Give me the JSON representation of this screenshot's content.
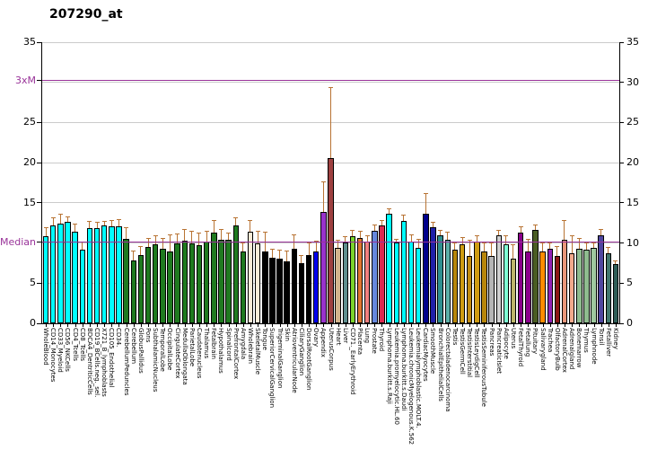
{
  "chart_data": {
    "type": "bar",
    "title": "207290_at",
    "xlabel": "",
    "ylabel": "",
    "ylim": [
      0,
      35
    ],
    "grid": true,
    "gridlines": [
      5,
      10,
      15,
      20,
      25,
      30,
      35
    ],
    "grid_color": "#cbcbcb",
    "axis_color": "#000000",
    "error_color": "#b87333",
    "ref_lines": [
      {
        "name": "3xM-line",
        "value": 30.2,
        "color": "#993399"
      },
      {
        "name": "median-line",
        "value": 10.07,
        "color": "#993399"
      }
    ],
    "left_ticks": [
      {
        "value": 35,
        "label": "35",
        "color": "#000000"
      },
      {
        "value": 30.2,
        "label": "3xM",
        "color": "#993399"
      },
      {
        "value": 25,
        "label": "25",
        "color": "#000000"
      },
      {
        "value": 20,
        "label": "20",
        "color": "#000000"
      },
      {
        "value": 15,
        "label": "15",
        "color": "#000000"
      },
      {
        "value": 10.07,
        "label": "Median",
        "color": "#993399"
      },
      {
        "value": 5,
        "label": "5",
        "color": "#000000"
      },
      {
        "value": 0,
        "label": "0",
        "color": "#000000"
      }
    ],
    "right_ticks": [
      {
        "value": 35,
        "label": "35"
      },
      {
        "value": 30,
        "label": "30"
      },
      {
        "value": 25,
        "label": "25"
      },
      {
        "value": 20,
        "label": "20"
      },
      {
        "value": 15,
        "label": "15"
      },
      {
        "value": 10,
        "label": "10"
      },
      {
        "value": 5,
        "label": "5"
      },
      {
        "value": 0,
        "label": "0"
      }
    ],
    "bars": [
      {
        "l": "WholeBlood",
        "v": 10.8,
        "e": 11.9,
        "c": "#00ffff"
      },
      {
        "l": "CD14_Monocytes",
        "v": 12.2,
        "e": 13.1,
        "c": "#00ffff"
      },
      {
        "l": "CD33_Myeloid",
        "v": 12.4,
        "e": 13.5,
        "c": "#00ffff"
      },
      {
        "l": "CD56_NKCells",
        "v": 12.6,
        "e": 13.2,
        "c": "#00ffff"
      },
      {
        "l": "CD4_Tcells",
        "v": 11.4,
        "e": 12.3,
        "c": "#00ffff"
      },
      {
        "l": "CD8_Tcells",
        "v": 9.2,
        "e": 10.1,
        "c": "#00ffff"
      },
      {
        "l": "BDCA4_DentriticCells",
        "v": 11.9,
        "e": 12.6,
        "c": "#00ffff"
      },
      {
        "l": "CD19_BCells.neg._sel.",
        "v": 11.9,
        "e": 12.5,
        "c": "#00ffff"
      },
      {
        "l": "X721_B_lymphoblasts",
        "v": 12.2,
        "e": 12.6,
        "c": "#00ffff"
      },
      {
        "l": "CD105_Endothelial",
        "v": 12.1,
        "e": 12.7,
        "c": "#00ffff"
      },
      {
        "l": "CD34.",
        "v": 12.1,
        "e": 12.9,
        "c": "#00ffff"
      },
      {
        "l": "CerebellumPeduncles",
        "v": 10.5,
        "e": 11.9,
        "c": "#1f7a1f"
      },
      {
        "l": "Cerebellum",
        "v": 7.8,
        "e": 8.9,
        "c": "#1f7a1f"
      },
      {
        "l": "GlobusPallidus",
        "v": 8.5,
        "e": 9.5,
        "c": "#1f7a1f"
      },
      {
        "l": "Pons",
        "v": 9.5,
        "e": 10.5,
        "c": "#1f7a1f"
      },
      {
        "l": "SubthalamicNucleus",
        "v": 9.8,
        "e": 10.8,
        "c": "#1f7a1f"
      },
      {
        "l": "TemporalLobe",
        "v": 9.3,
        "e": 10.5,
        "c": "#1f7a1f"
      },
      {
        "l": "OccipitalLobe",
        "v": 8.9,
        "e": 11.0,
        "c": "#1f7a1f"
      },
      {
        "l": "CingulateCortex",
        "v": 10.0,
        "e": 11.1,
        "c": "#1f7a1f"
      },
      {
        "l": "MedullaOblongata",
        "v": 10.3,
        "e": 11.6,
        "c": "#1f7a1f"
      },
      {
        "l": "ParietalLobe",
        "v": 10.0,
        "e": 11.4,
        "c": "#1f7a1f"
      },
      {
        "l": "Caudatenucleus",
        "v": 9.7,
        "e": 11.2,
        "c": "#1f7a1f"
      },
      {
        "l": "Thalamus",
        "v": 10.2,
        "e": 11.4,
        "c": "#1f7a1f"
      },
      {
        "l": "Fetalbrain",
        "v": 11.3,
        "e": 12.7,
        "c": "#1f7a1f"
      },
      {
        "l": "Hypothalamus",
        "v": 10.4,
        "e": 11.6,
        "c": "#1f7a1f"
      },
      {
        "l": "Spinalcord",
        "v": 10.4,
        "e": 11.2,
        "c": "#1f7a1f"
      },
      {
        "l": "PrefrontalCortex",
        "v": 12.2,
        "e": 13.1,
        "c": "#1f7a1f"
      },
      {
        "l": "Amygdala",
        "v": 8.9,
        "e": 10.0,
        "c": "#1f7a1f"
      },
      {
        "l": "Wholebrain",
        "v": 11.4,
        "e": 12.8,
        "c": "#faebd7"
      },
      {
        "l": "SkeletalMuscle",
        "v": 10.0,
        "e": 11.4,
        "c": "#faebd7"
      },
      {
        "l": "Tongue",
        "v": 9.0,
        "e": 11.3,
        "c": "#000000"
      },
      {
        "l": "SuperiorCervicalGanglion",
        "v": 8.2,
        "e": 9.2,
        "c": "#000000"
      },
      {
        "l": "TrigeminalGanglion",
        "v": 8.0,
        "e": 9.1,
        "c": "#000000"
      },
      {
        "l": "Skin",
        "v": 7.7,
        "e": 8.9,
        "c": "#000000"
      },
      {
        "l": "AtrioventricularNode",
        "v": 9.3,
        "e": 11.0,
        "c": "#000000"
      },
      {
        "l": "CiliaryGanglion",
        "v": 7.5,
        "e": 8.4,
        "c": "#000000"
      },
      {
        "l": "DorsalRootGanglion",
        "v": 8.5,
        "e": 9.9,
        "c": "#000000"
      },
      {
        "l": "Ovary",
        "v": 8.9,
        "e": 10.2,
        "c": "#0000ee"
      },
      {
        "l": "Appendix",
        "v": 13.9,
        "e": 17.6,
        "c": "#9932cc"
      },
      {
        "l": "UterusCorpus",
        "v": 20.6,
        "e": 29.3,
        "c": "#9e4040"
      },
      {
        "l": "Heart",
        "v": 9.4,
        "e": 10.3,
        "c": "#d2b48c"
      },
      {
        "l": "Liver",
        "v": 10.1,
        "e": 10.7,
        "c": "#5f8f8f"
      },
      {
        "l": "CD71._EarlyErythroid",
        "v": 10.8,
        "e": 11.5,
        "c": "#7bd32c"
      },
      {
        "l": "Placenta",
        "v": 10.6,
        "e": 11.4,
        "c": "#e0762f"
      },
      {
        "l": "Lung",
        "v": 10.2,
        "e": 10.9,
        "c": "#f08080"
      },
      {
        "l": "Prostate",
        "v": 11.5,
        "e": 12.2,
        "c": "#6688dd"
      },
      {
        "l": "Thyroid",
        "v": 12.2,
        "e": 12.8,
        "c": "#dc2850"
      },
      {
        "l": "Lymphoma.burkitt.s.Raji",
        "v": 13.6,
        "e": 14.2,
        "c": "#00ffff"
      },
      {
        "l": "Leukemia.promyelocytic.HL.60",
        "v": 10.1,
        "e": 10.4,
        "c": "#00ffff"
      },
      {
        "l": "Lymphoma.burkitt.s.Daudi",
        "v": 12.8,
        "e": 13.4,
        "c": "#00ffff"
      },
      {
        "l": "Leukemia.chronicMyelogenous.K.562",
        "v": 10.2,
        "e": 11.0,
        "c": "#00ffff"
      },
      {
        "l": "Leukemialymphoblastic.MOLT.4.",
        "v": 9.4,
        "e": 10.4,
        "c": "#00ffff"
      },
      {
        "l": "CardiacMyocytes",
        "v": 13.6,
        "e": 16.1,
        "c": "#00008b"
      },
      {
        "l": "SmoothMuscle",
        "v": 12.0,
        "e": 12.5,
        "c": "#2020a8"
      },
      {
        "l": "BronchialEpithelialCells",
        "v": 11.0,
        "e": 11.5,
        "c": "#2f8f8f"
      },
      {
        "l": "Colorectaladenocarcinoma",
        "v": 10.4,
        "e": 11.3,
        "c": "#5cb0a8"
      },
      {
        "l": "Testis",
        "v": 9.2,
        "e": 9.9,
        "c": "#b8860b"
      },
      {
        "l": "TestisGermCell",
        "v": 9.8,
        "e": 10.6,
        "c": "#cf9c12"
      },
      {
        "l": "TestisInterstitial",
        "v": 8.4,
        "e": 10.3,
        "c": "#c08c10"
      },
      {
        "l": "TestisLeydigCell",
        "v": 10.2,
        "e": 10.9,
        "c": "#cf9c12"
      },
      {
        "l": "TestisSeminiferousTubule",
        "v": 8.9,
        "e": 10.0,
        "c": "#b8860b"
      },
      {
        "l": "Pancreas",
        "v": 8.4,
        "e": 9.9,
        "c": "#b5b5b5"
      },
      {
        "l": "PancreaticIslet",
        "v": 11.0,
        "e": 11.5,
        "c": "#cfcfcf"
      },
      {
        "l": "Adipocyte",
        "v": 9.8,
        "e": 10.8,
        "c": "#7fffd4"
      },
      {
        "l": "Uterus",
        "v": 8.1,
        "e": 9.7,
        "c": "#bdb76b"
      },
      {
        "l": "FetalThyroid",
        "v": 11.3,
        "e": 12.0,
        "c": "#8b008b"
      },
      {
        "l": "Fetallung",
        "v": 9.0,
        "e": 10.4,
        "c": "#8b008b"
      },
      {
        "l": "Pituitary",
        "v": 11.6,
        "e": 12.2,
        "c": "#4a5d23"
      },
      {
        "l": "Salivarygland",
        "v": 9.0,
        "e": 10.0,
        "c": "#ff8c00"
      },
      {
        "l": "Trachea",
        "v": 9.3,
        "e": 10.0,
        "c": "#9222b4"
      },
      {
        "l": "OlfactoryBulb",
        "v": 8.4,
        "e": 9.5,
        "c": "#8b1616"
      },
      {
        "l": "AdrenalCortex",
        "v": 10.4,
        "e": 12.8,
        "c": "#e9967a"
      },
      {
        "l": "Adrenalgland",
        "v": 8.7,
        "e": 10.8,
        "c": "#f2a98c"
      },
      {
        "l": "Bonemarrow",
        "v": 9.3,
        "e": 10.5,
        "c": "#8fbc8f"
      },
      {
        "l": "Thymus",
        "v": 9.2,
        "e": 9.9,
        "c": "#8fbc8f"
      },
      {
        "l": "Lymphnode",
        "v": 9.4,
        "e": 10.0,
        "c": "#9fc99f"
      },
      {
        "l": "Tonsil",
        "v": 11.0,
        "e": 11.6,
        "c": "#4f46a0"
      },
      {
        "l": "Fetalliver",
        "v": 8.7,
        "e": 9.4,
        "c": "#40756e"
      },
      {
        "l": "Kidney",
        "v": 7.4,
        "e": 7.7,
        "c": "#2f5d57"
      }
    ]
  }
}
